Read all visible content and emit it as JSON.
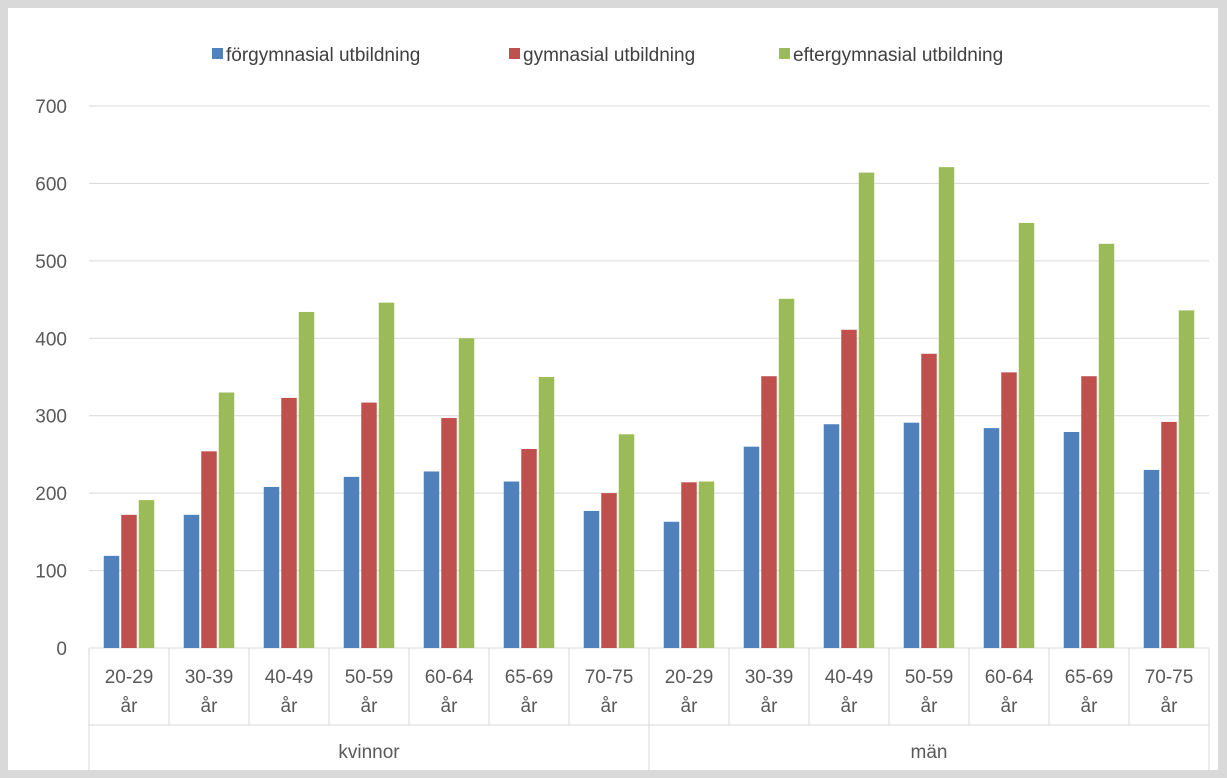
{
  "chart_data": {
    "type": "bar",
    "title": "",
    "xlabel": "",
    "ylabel": "",
    "ylim": [
      0,
      700
    ],
    "yticks": [
      "0",
      "100",
      "200",
      "300",
      "400",
      "500",
      "600",
      "700"
    ],
    "grid": true,
    "legend_position": "top",
    "groups": [
      {
        "label": "kvinnor",
        "categories": [
          {
            "line1": "20-29",
            "line2": "år"
          },
          {
            "line1": "30-39",
            "line2": "år"
          },
          {
            "line1": "40-49",
            "line2": "år"
          },
          {
            "line1": "50-59",
            "line2": "år"
          },
          {
            "line1": "60-64",
            "line2": "år"
          },
          {
            "line1": "65-69",
            "line2": "år"
          },
          {
            "line1": "70-75",
            "line2": "år"
          }
        ]
      },
      {
        "label": "män",
        "categories": [
          {
            "line1": "20-29",
            "line2": "år"
          },
          {
            "line1": "30-39",
            "line2": "år"
          },
          {
            "line1": "40-49",
            "line2": "år"
          },
          {
            "line1": "50-59",
            "line2": "år"
          },
          {
            "line1": "60-64",
            "line2": "år"
          },
          {
            "line1": "65-69",
            "line2": "år"
          },
          {
            "line1": "70-75",
            "line2": "år"
          }
        ]
      }
    ],
    "series": [
      {
        "name": "förgymnasial utbildning",
        "color": "#4f81bd",
        "values": [
          119,
          172,
          208,
          221,
          228,
          215,
          177,
          163,
          260,
          289,
          291,
          284,
          279,
          230
        ]
      },
      {
        "name": "gymnasial utbildning",
        "color": "#c0504d",
        "values": [
          172,
          254,
          323,
          317,
          297,
          257,
          200,
          214,
          351,
          411,
          380,
          356,
          351,
          292
        ]
      },
      {
        "name": "eftergymnasial utbildning",
        "color": "#9bbb59",
        "values": [
          191,
          330,
          434,
          446,
          400,
          350,
          276,
          215,
          451,
          614,
          621,
          549,
          522,
          436
        ]
      }
    ]
  }
}
